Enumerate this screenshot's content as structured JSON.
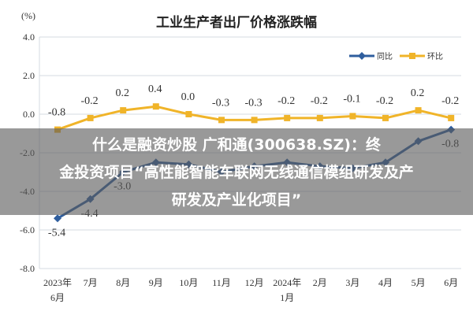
{
  "chart_data": {
    "type": "line",
    "title": "工业生产者出厂价格涨跌幅",
    "unit_label": "(%)",
    "categories": [
      "2023年6月",
      "7月",
      "8月",
      "9月",
      "10月",
      "11月",
      "12月",
      "2024年1月",
      "2月",
      "3月",
      "4月",
      "5月",
      "6月"
    ],
    "category_lines": [
      [
        "2023年",
        "6月"
      ],
      [
        "7月"
      ],
      [
        "8月"
      ],
      [
        "9月"
      ],
      [
        "10月"
      ],
      [
        "11月"
      ],
      [
        "12月"
      ],
      [
        "2024年",
        "1月"
      ],
      [
        "2月"
      ],
      [
        "3月"
      ],
      [
        "4月"
      ],
      [
        "5月"
      ],
      [
        "6月"
      ]
    ],
    "series": [
      {
        "name": "同比",
        "color": "#2f5e9e",
        "values": [
          -5.4,
          -4.4,
          -3.0,
          -2.5,
          -2.6,
          -3.0,
          -2.7,
          -2.5,
          -2.7,
          -2.8,
          -2.5,
          -1.4,
          -0.8
        ],
        "labels": [
          "-5.4",
          "-4.4",
          "-3.0",
          "",
          "",
          "",
          "",
          "",
          "",
          "",
          "",
          "",
          "-0.8"
        ]
      },
      {
        "name": "环比",
        "color": "#f0b429",
        "values": [
          -0.8,
          -0.2,
          0.2,
          0.4,
          0.0,
          -0.3,
          -0.3,
          -0.2,
          -0.2,
          -0.1,
          -0.2,
          0.2,
          -0.2
        ],
        "labels": [
          "-0.8",
          "-0.2",
          "0.2",
          "0.4",
          "0.0",
          "-0.3",
          "-0.3",
          "-0.2",
          "-0.2",
          "-0.1",
          "-0.2",
          "0.2",
          "-0.2"
        ]
      }
    ],
    "yticks": [
      "4.0",
      "2.0",
      "0.0",
      "-2.0",
      "-4.0",
      "-6.0",
      "-8.0"
    ],
    "ylim": [
      -8,
      4
    ],
    "grid": true,
    "legend_position": "top-right"
  },
  "overlay": {
    "line1": "什么是融资炒股 广和通(300638.SZ)：终",
    "line2": "金投资项目“高性能智能车联网无线通信模组研发及产",
    "line3": "研发及产业化项目”"
  }
}
